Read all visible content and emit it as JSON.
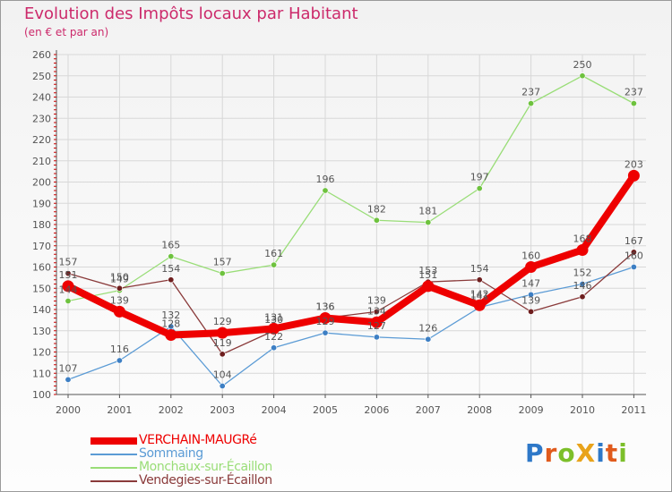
{
  "colors": {
    "title": "#cc2a6b",
    "grid": "#d8d8d8",
    "axis": "#555555",
    "axis_tick_red": "#c80000",
    "label": "#555555"
  },
  "brand": {
    "text": "ProXiti",
    "letters": [
      {
        "char": "P",
        "color": "#2e78c8"
      },
      {
        "char": "r",
        "color": "#e05a1c"
      },
      {
        "char": "o",
        "color": "#7cbf2a"
      },
      {
        "char": "X",
        "color": "#e8a31b"
      },
      {
        "char": "i",
        "color": "#2e78c8"
      },
      {
        "char": "t",
        "color": "#e05a1c"
      },
      {
        "char": "i",
        "color": "#7cbf2a"
      }
    ]
  },
  "chart_data": {
    "type": "line",
    "title": "Evolution des Impôts locaux par Habitant",
    "subtitle": "(en € et par an)",
    "xlabel": "",
    "ylabel": "",
    "x": [
      "2000",
      "2001",
      "2002",
      "2003",
      "2004",
      "2005",
      "2006",
      "2007",
      "2008",
      "2009",
      "2010",
      "2011"
    ],
    "ylim": [
      100,
      260
    ],
    "yticks": [
      100,
      110,
      120,
      130,
      140,
      150,
      160,
      170,
      180,
      190,
      200,
      210,
      220,
      230,
      240,
      250,
      260
    ],
    "grid": true,
    "legend_position": "bottom-left",
    "series": [
      {
        "name": "Sommaing",
        "color": "#5b9bd5",
        "marker": "#3d7fc4",
        "width": 1.3,
        "values": [
          107,
          116,
          132,
          104,
          122,
          129,
          127,
          126,
          141,
          147,
          152,
          160
        ],
        "labels": [
          "107",
          "116",
          "132",
          "104",
          "122",
          "129",
          "127",
          "126",
          "141",
          "147",
          "152",
          "160"
        ]
      },
      {
        "name": "Monchaux-sur-Écaillon",
        "color": "#99dd77",
        "marker": "#6ec23e",
        "width": 1.3,
        "values": [
          144,
          149,
          165,
          157,
          161,
          196,
          182,
          181,
          197,
          237,
          250,
          237
        ],
        "labels": [
          "144",
          "149",
          "165",
          "157",
          "161",
          "196",
          "182",
          "181",
          "197",
          "237",
          "250",
          "237"
        ]
      },
      {
        "name": "Vendegies-sur-Écaillon",
        "color": "#8a3a3a",
        "marker": "#6e1e1e",
        "width": 1.3,
        "values": [
          157,
          150,
          154,
          119,
          130,
          136,
          139,
          153,
          154,
          139,
          146,
          167
        ],
        "labels": [
          "157",
          "150",
          "154",
          "119",
          "130",
          "136",
          "139",
          "153",
          "154",
          "139",
          "146",
          "167"
        ]
      },
      {
        "name": "VERCHAIN-MAUGRé",
        "color": "#ee0000",
        "marker": "#ee0000",
        "width": 8,
        "values": [
          151,
          139,
          128,
          129,
          131,
          136,
          134,
          151,
          142,
          160,
          168,
          203
        ],
        "labels": [
          "151",
          "139",
          "128",
          "129",
          "131",
          "136",
          "134",
          "151",
          "142",
          "160",
          "168",
          "203"
        ]
      }
    ],
    "legend_order": [
      "VERCHAIN-MAUGRé",
      "Sommaing",
      "Monchaux-sur-Écaillon",
      "Vendegies-sur-Écaillon"
    ]
  }
}
